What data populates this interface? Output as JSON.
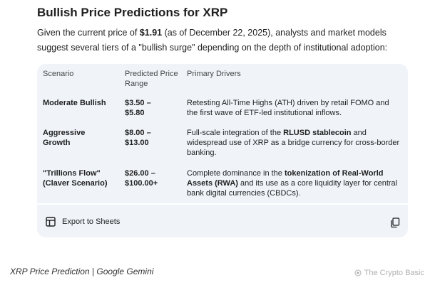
{
  "response": {
    "heading": "Bullish Price Predictions for XRP",
    "intro_before": "Given the current price of ",
    "intro_price": "$1.91",
    "intro_after": " (as of December 22, 2025), analysts and market models suggest several tiers of a \"bullish surge\" depending on the depth of institutional adoption:"
  },
  "table": {
    "headers": [
      "Scenario",
      "Predicted Price Range",
      "Primary Drivers"
    ],
    "rows": [
      {
        "scenario": "Moderate Bullish",
        "range": "$3.50 – $5.80",
        "drivers_pre": "Retesting All-Time Highs (ATH) driven by retail FOMO and the first wave of ETF-led institutional inflows.",
        "drivers_bold": "",
        "drivers_post": ""
      },
      {
        "scenario": "Aggressive Growth",
        "range": "$8.00 – $13.00",
        "drivers_pre": "Full-scale integration of the ",
        "drivers_bold": "RLUSD stablecoin",
        "drivers_post": " and widespread use of XRP as a bridge currency for cross-border banking."
      },
      {
        "scenario": "\"Trillions Flow\" (Claver Scenario)",
        "range": "$26.00 – $100.00+",
        "drivers_pre": "Complete dominance in the ",
        "drivers_bold": "tokenization of Real-World Assets (RWA)",
        "drivers_post": " and its use as a core liquidity layer for central bank digital currencies (CBDCs)."
      }
    ]
  },
  "toolbar": {
    "export_label": "Export to Sheets",
    "export_icon": "table-grid-icon",
    "copy_icon": "copy-icon"
  },
  "caption": "XRP Price Prediction | Google Gemini",
  "watermark": "The Crypto Basic"
}
